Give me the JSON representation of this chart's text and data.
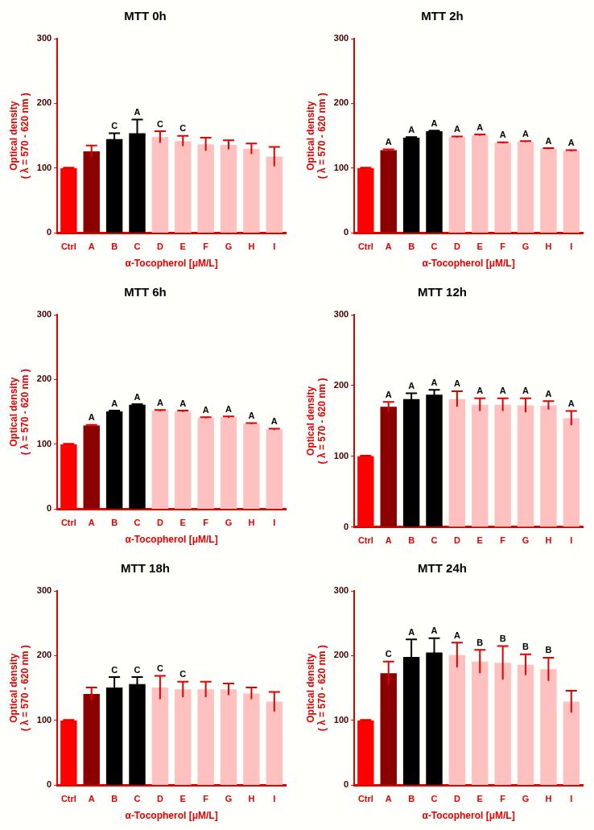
{
  "chart_data": [
    {
      "type": "bar",
      "title": "MTT 0h",
      "xlabel": "α-Tocopherol [μM/L]",
      "ylabel": "Optical density\n( λ = 570 - 620 nm )",
      "categories": [
        "Ctrl",
        "A",
        "B",
        "C",
        "D",
        "E",
        "F",
        "G",
        "H",
        "I"
      ],
      "values": [
        100,
        126,
        145,
        154,
        148,
        142,
        137,
        136,
        130,
        118
      ],
      "errors": [
        1,
        9,
        9,
        21,
        9,
        8,
        10,
        7,
        8,
        15
      ],
      "colors": [
        "#ff0000",
        "#8b0000",
        "#000000",
        "#000000",
        "#ffc0c0",
        "#ffc0c0",
        "#ffc0c0",
        "#ffc0c0",
        "#ffc0c0",
        "#ffc0c0"
      ],
      "ylim": [
        0,
        300
      ],
      "yticks": [
        0,
        100,
        200,
        300
      ],
      "annotations": [
        {
          "text": "C",
          "x": "B",
          "y": 154
        },
        {
          "text": "A",
          "x": "C",
          "y": 175
        },
        {
          "text": "C",
          "x": "D",
          "y": 157
        },
        {
          "text": "C",
          "x": "E",
          "y": 150
        }
      ]
    },
    {
      "type": "bar",
      "title": "MTT 2h",
      "xlabel": "α-Tocopherol [μM/L]",
      "ylabel": "Optical density\n( λ = 570 - 620 nm )",
      "categories": [
        "Ctrl",
        "A",
        "B",
        "C",
        "D",
        "E",
        "F",
        "G",
        "H",
        "I"
      ],
      "values": [
        100,
        128,
        147,
        157,
        148,
        151,
        139,
        141,
        130,
        127
      ],
      "errors": [
        1,
        1,
        1,
        1,
        1,
        1,
        1,
        1,
        1,
        1
      ],
      "colors": [
        "#ff0000",
        "#8b0000",
        "#000000",
        "#000000",
        "#ffc0c0",
        "#ffc0c0",
        "#ffc0c0",
        "#ffc0c0",
        "#ffc0c0",
        "#ffc0c0"
      ],
      "ylim": [
        0,
        300
      ],
      "yticks": [
        0,
        100,
        200,
        300
      ],
      "annotations": [
        {
          "text": "A",
          "x": "A",
          "y": 129
        },
        {
          "text": "A",
          "x": "B",
          "y": 148
        },
        {
          "text": "A",
          "x": "C",
          "y": 158
        },
        {
          "text": "A",
          "x": "D",
          "y": 149
        },
        {
          "text": "A",
          "x": "E",
          "y": 152
        },
        {
          "text": "A",
          "x": "F",
          "y": 140
        },
        {
          "text": "A",
          "x": "G",
          "y": 142
        },
        {
          "text": "A",
          "x": "H",
          "y": 131
        },
        {
          "text": "A",
          "x": "I",
          "y": 128
        }
      ]
    },
    {
      "type": "bar",
      "title": "MTT 6h",
      "xlabel": "α-Tocopherol [μM/L]",
      "ylabel": "Optical density\n( λ = 570 - 620 nm )",
      "categories": [
        "Ctrl",
        "A",
        "B",
        "C",
        "D",
        "E",
        "F",
        "G",
        "H",
        "I"
      ],
      "values": [
        100,
        129,
        151,
        161,
        152,
        151,
        141,
        142,
        132,
        123
      ],
      "errors": [
        1,
        1,
        1,
        1,
        1,
        1,
        1,
        1,
        1,
        1
      ],
      "colors": [
        "#ff0000",
        "#8b0000",
        "#000000",
        "#000000",
        "#ffc0c0",
        "#ffc0c0",
        "#ffc0c0",
        "#ffc0c0",
        "#ffc0c0",
        "#ffc0c0"
      ],
      "ylim": [
        0,
        300
      ],
      "yticks": [
        0,
        100,
        200,
        300
      ],
      "annotations": [
        {
          "text": "A",
          "x": "A",
          "y": 130
        },
        {
          "text": "A",
          "x": "B",
          "y": 152
        },
        {
          "text": "A",
          "x": "C",
          "y": 162
        },
        {
          "text": "A",
          "x": "D",
          "y": 153
        },
        {
          "text": "A",
          "x": "E",
          "y": 152
        },
        {
          "text": "A",
          "x": "F",
          "y": 142
        },
        {
          "text": "A",
          "x": "G",
          "y": 143
        },
        {
          "text": "A",
          "x": "H",
          "y": 133
        },
        {
          "text": "A",
          "x": "I",
          "y": 124
        }
      ]
    },
    {
      "type": "bar",
      "title": "MTT 12h",
      "ylabel": "Optical density\n( λ = 570 - 620 nm )",
      "categories": [
        "Ctrl",
        "A",
        "B",
        "C",
        "D",
        "E",
        "F",
        "G",
        "H",
        "I"
      ],
      "values": [
        100,
        170,
        181,
        187,
        181,
        173,
        173,
        172,
        172,
        154
      ],
      "errors": [
        1,
        7,
        8,
        7,
        11,
        9,
        9,
        10,
        6,
        10
      ],
      "colors": [
        "#ff0000",
        "#8b0000",
        "#000000",
        "#000000",
        "#ffc0c0",
        "#ffc0c0",
        "#ffc0c0",
        "#ffc0c0",
        "#ffc0c0",
        "#ffc0c0"
      ],
      "ylim": [
        0,
        300
      ],
      "yticks": [
        0,
        100,
        200,
        300
      ],
      "annotations": [
        {
          "text": "A",
          "x": "A",
          "y": 177
        },
        {
          "text": "A",
          "x": "B",
          "y": 189
        },
        {
          "text": "A",
          "x": "C",
          "y": 194
        },
        {
          "text": "A",
          "x": "D",
          "y": 192
        },
        {
          "text": "A",
          "x": "E",
          "y": 182
        },
        {
          "text": "A",
          "x": "F",
          "y": 182
        },
        {
          "text": "A",
          "x": "G",
          "y": 182
        },
        {
          "text": "A",
          "x": "H",
          "y": 178
        },
        {
          "text": "A",
          "x": "I",
          "y": 164
        }
      ]
    },
    {
      "type": "bar",
      "title": "MTT 18h",
      "xlabel": "α-Tocopherol [μM/L]",
      "ylabel": "Optical density\n( λ = 570 - 620 nm )",
      "categories": [
        "Ctrl",
        "A",
        "B",
        "C",
        "D",
        "E",
        "F",
        "G",
        "H",
        "I"
      ],
      "values": [
        100,
        141,
        151,
        156,
        151,
        148,
        148,
        148,
        142,
        129
      ],
      "errors": [
        1,
        10,
        16,
        11,
        18,
        12,
        12,
        9,
        9,
        15
      ],
      "colors": [
        "#ff0000",
        "#8b0000",
        "#000000",
        "#000000",
        "#ffc0c0",
        "#ffc0c0",
        "#ffc0c0",
        "#ffc0c0",
        "#ffc0c0",
        "#ffc0c0"
      ],
      "ylim": [
        0,
        300
      ],
      "yticks": [
        0,
        100,
        200,
        300
      ],
      "annotations": [
        {
          "text": "C",
          "x": "B",
          "y": 167
        },
        {
          "text": "C",
          "x": "C",
          "y": 167
        },
        {
          "text": "C",
          "x": "D",
          "y": 169
        },
        {
          "text": "C",
          "x": "E",
          "y": 160
        }
      ]
    },
    {
      "type": "bar",
      "title": "MTT 24h",
      "xlabel": "α-Tocopherol [μM/L]",
      "ylabel": "Optical density\n( λ = 570 - 620 nm )",
      "categories": [
        "Ctrl",
        "A",
        "B",
        "C",
        "D",
        "E",
        "F",
        "G",
        "H",
        "I"
      ],
      "values": [
        100,
        173,
        198,
        205,
        201,
        191,
        189,
        186,
        179,
        129
      ],
      "errors": [
        1,
        18,
        27,
        22,
        19,
        18,
        26,
        16,
        18,
        17
      ],
      "colors": [
        "#ff0000",
        "#8b0000",
        "#000000",
        "#000000",
        "#ffc0c0",
        "#ffc0c0",
        "#ffc0c0",
        "#ffc0c0",
        "#ffc0c0",
        "#ffc0c0"
      ],
      "ylim": [
        0,
        300
      ],
      "yticks": [
        0,
        100,
        200,
        300
      ],
      "annotations": [
        {
          "text": "C",
          "x": "A",
          "y": 191
        },
        {
          "text": "A",
          "x": "B",
          "y": 225
        },
        {
          "text": "A",
          "x": "C",
          "y": 227
        },
        {
          "text": "A",
          "x": "D",
          "y": 220
        },
        {
          "text": "B",
          "x": "E",
          "y": 209
        },
        {
          "text": "B",
          "x": "F",
          "y": 215
        },
        {
          "text": "B",
          "x": "G",
          "y": 202
        },
        {
          "text": "B",
          "x": "H",
          "y": 197
        }
      ]
    }
  ]
}
